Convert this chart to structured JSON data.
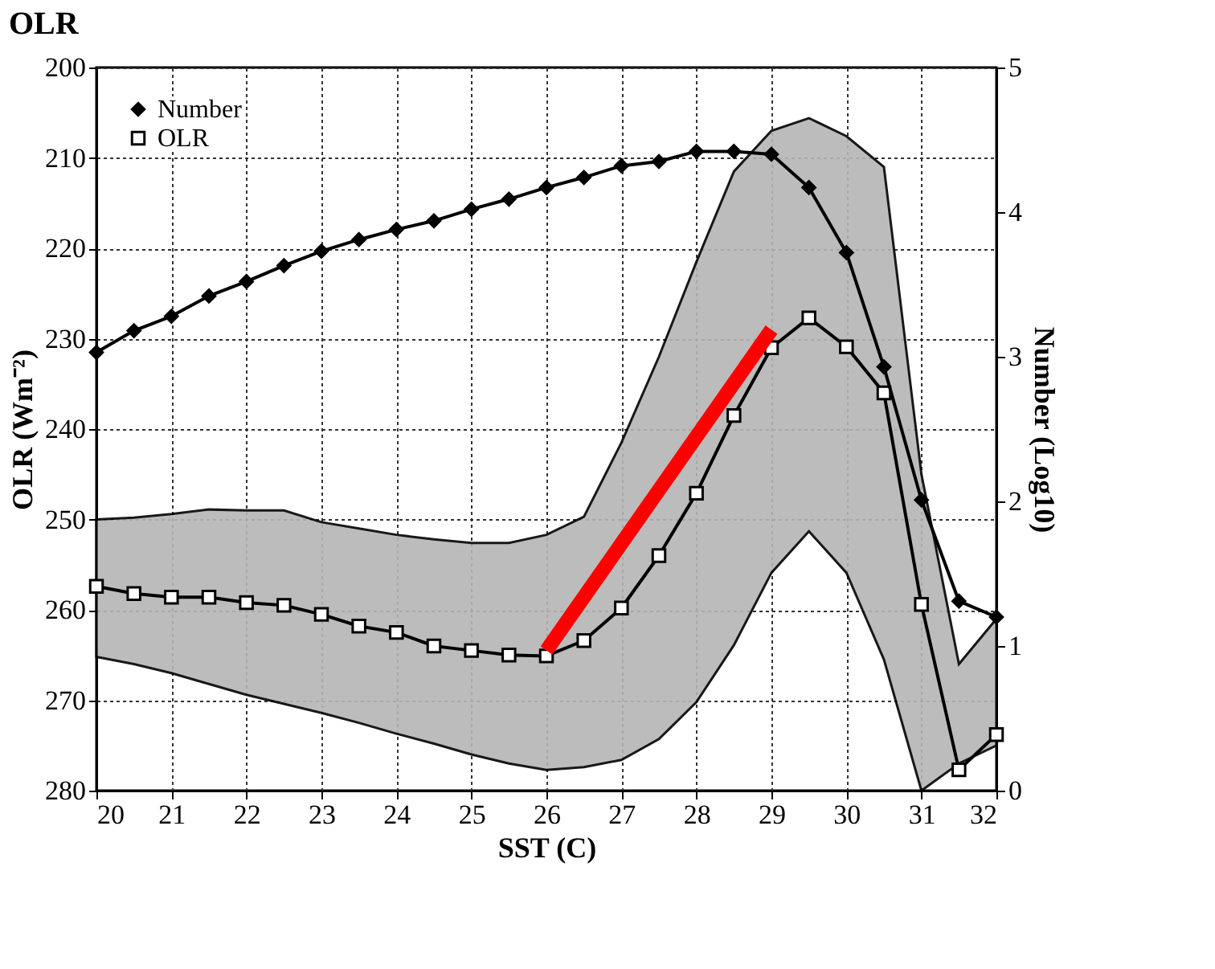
{
  "chart_data": {
    "type": "line",
    "title": "OLR",
    "xlabel": "SST (C)",
    "ylabel": "OLR (Wm⁻²)",
    "y2label": "Number (Log10)",
    "x": [
      20,
      20.5,
      21,
      21.5,
      22,
      22.5,
      23,
      23.5,
      24,
      24.5,
      25,
      25.5,
      26,
      26.5,
      27,
      27.5,
      28,
      28.5,
      29,
      29.5,
      30,
      30.5,
      31,
      31.5,
      32
    ],
    "xlim": [
      20,
      32
    ],
    "xticks": [
      20,
      21,
      22,
      23,
      24,
      25,
      26,
      27,
      28,
      29,
      30,
      31,
      32
    ],
    "ylim": [
      280,
      200
    ],
    "yticks": [
      200,
      210,
      220,
      230,
      240,
      250,
      260,
      270,
      280
    ],
    "y2lim": [
      0,
      5
    ],
    "y2ticks": [
      0,
      1,
      2,
      3,
      4,
      5
    ],
    "grid": true,
    "legend": "top left",
    "series": [
      {
        "name": "Number",
        "color": "#000000",
        "axis": "y2",
        "marker": "diamond",
        "values": [
          3.03,
          3.18,
          3.28,
          3.42,
          3.52,
          3.63,
          3.73,
          3.81,
          3.88,
          3.94,
          4.02,
          4.09,
          4.17,
          4.24,
          4.32,
          4.35,
          4.42,
          4.42,
          4.4,
          4.17,
          3.72,
          2.93,
          2.01,
          1.31,
          1.2
        ]
      },
      {
        "name": "OLR",
        "color": "#000000",
        "marker": "square",
        "values": [
          257.4,
          258.2,
          258.6,
          258.6,
          259.2,
          259.5,
          260.5,
          261.8,
          262.5,
          264,
          264.5,
          265,
          265.1,
          263.4,
          259.8,
          254,
          247.1,
          238.5,
          231,
          227.7,
          230.9,
          236,
          259.4,
          277.7,
          273.8
        ],
        "lower": [
          250,
          249.8,
          249.4,
          248.9,
          249,
          249,
          250.3,
          251,
          251.7,
          252.2,
          252.6,
          252.6,
          251.7,
          249.7,
          241.5,
          232,
          221.5,
          211.5,
          207,
          205.6,
          207.6,
          211,
          245,
          266,
          261
        ],
        "upper": [
          265.2,
          266,
          267,
          268.2,
          269.4,
          270.4,
          271.4,
          272.5,
          273.7,
          274.8,
          276,
          277,
          277.7,
          277.4,
          276.6,
          274.3,
          270.2,
          263.9,
          255.9,
          251.3,
          255.9,
          265.5,
          280,
          277,
          275
        ]
      },
      {
        "type": "line",
        "color": "#ff0000",
        "x": [
          26,
          29
        ],
        "values": [
          264.5,
          229
        ]
      }
    ]
  }
}
